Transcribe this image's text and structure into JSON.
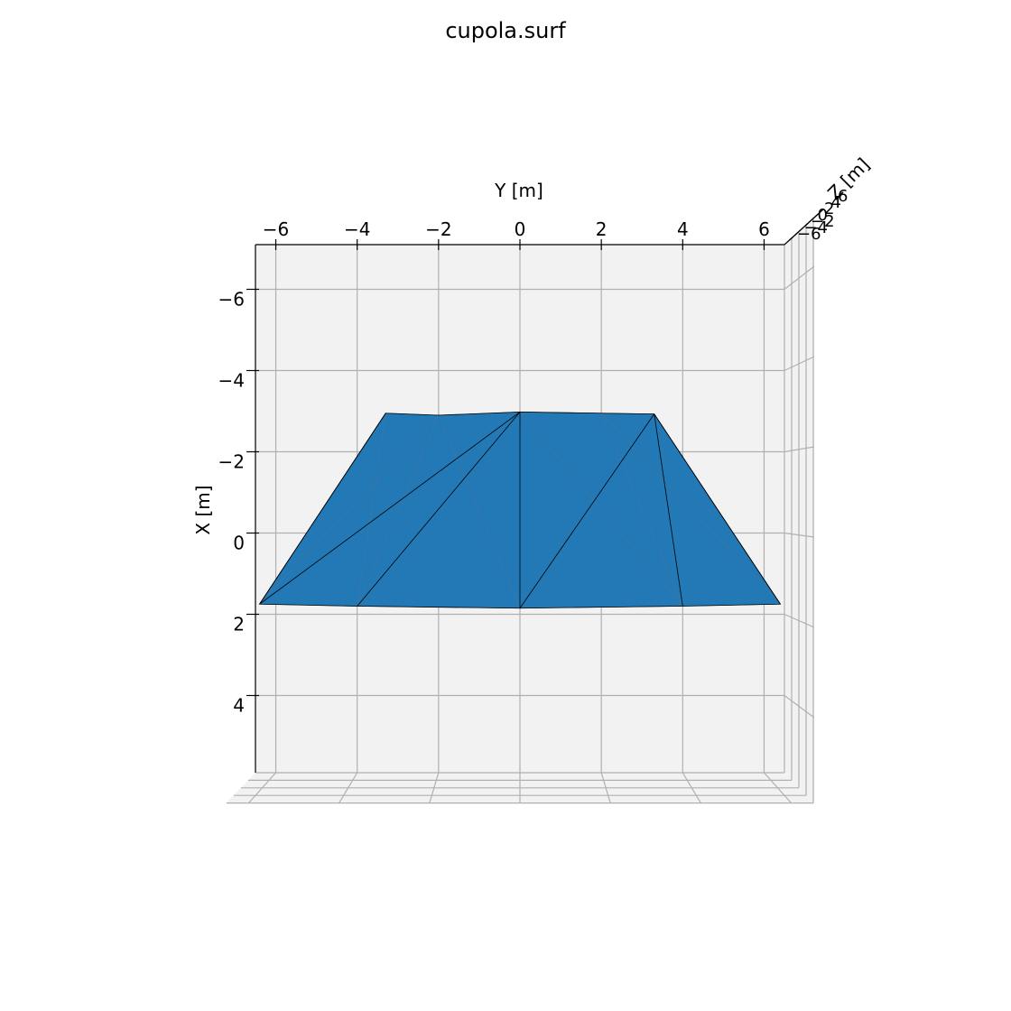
{
  "chart_data": {
    "type": "surface3d",
    "title": "cupola.surf",
    "xlabel": "Y [m]",
    "ylabel": "X [m]",
    "zlabel": "Z [m]",
    "y_ticks": [
      "−6",
      "−4",
      "−2",
      "0",
      "2",
      "4",
      "6"
    ],
    "x_ticks": [
      "−6",
      "−4",
      "−2",
      "0",
      "2",
      "4"
    ],
    "z_ticks": [
      "−6",
      "−4",
      "−2",
      "0",
      "2",
      "4",
      "6"
    ],
    "y_range": [
      -6.5,
      6.5
    ],
    "x_range": [
      -7.1,
      5.9
    ],
    "grid": true,
    "color": "#2279b5",
    "vertices": [
      {
        "y": -6.4,
        "x": 1.75
      },
      {
        "y": -4.0,
        "x": 1.8
      },
      {
        "y": 0.0,
        "x": 1.85
      },
      {
        "y": 4.0,
        "x": 1.8
      },
      {
        "y": 6.4,
        "x": 1.75
      },
      {
        "y": -3.3,
        "x": -2.95
      },
      {
        "y": -2.0,
        "x": -2.9
      },
      {
        "y": 0.0,
        "x": -2.98
      },
      {
        "y": 2.0,
        "x": -2.95
      },
      {
        "y": 3.3,
        "x": -2.93
      }
    ],
    "edges": [
      [
        0,
        5
      ],
      [
        0,
        7
      ],
      [
        1,
        7
      ],
      [
        2,
        7
      ],
      [
        2,
        9
      ],
      [
        3,
        9
      ],
      [
        4,
        9
      ]
    ],
    "faint_edges": [
      [
        1,
        5
      ],
      [
        0,
        6
      ],
      [
        2,
        6
      ],
      [
        3,
        7
      ],
      [
        4,
        8
      ],
      [
        3,
        8
      ],
      [
        1,
        6
      ]
    ],
    "outline": [
      0,
      1,
      2,
      3,
      4,
      9,
      8,
      7,
      6,
      5
    ]
  }
}
